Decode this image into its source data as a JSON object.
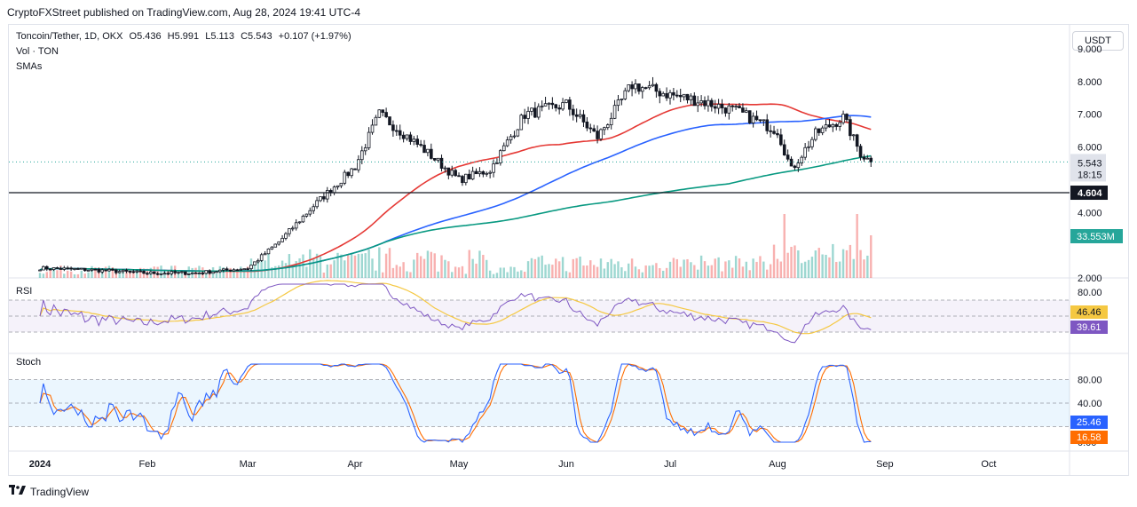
{
  "header": {
    "published": "CryptoFXStreet published on TradingView.com, Aug 28, 2024 19:41 UTC-4"
  },
  "legend": {
    "symbol": "Toncoin/Tether, 1D, OKX",
    "open": "O5.436",
    "high": "H5.991",
    "low": "L5.113",
    "close": "C5.543",
    "change": "+0.107 (+1.97%)",
    "volume_label": "Vol · TON",
    "sma_label": "SMAs"
  },
  "currency_button": "USDT",
  "panes": {
    "rsi_label": "RSI",
    "stoch_label": "Stoch"
  },
  "price_axis": {
    "ticks": [
      "9.000",
      "8.000",
      "7.000",
      "6.000",
      "4.000",
      "2.000"
    ],
    "last_price": "5.543",
    "countdown": "18:15",
    "hline_price": "4.604",
    "volume_badge": "33.553M"
  },
  "rsi_axis": {
    "ticks": [
      "80.00"
    ],
    "rsi_ma_value": "46.46",
    "rsi_value": "39.61"
  },
  "stoch_axis": {
    "ticks": [
      "80.00",
      "40.00",
      "0.00"
    ],
    "k_value": "25.46",
    "d_value": "16.58"
  },
  "time_axis": {
    "labels": [
      "2024",
      "Feb",
      "Mar",
      "Apr",
      "May",
      "Jun",
      "Jul",
      "Aug",
      "Sep",
      "Oct"
    ]
  },
  "brand": "TradingView",
  "colors": {
    "sma_fast": "#e53935",
    "sma_mid": "#2962ff",
    "sma_slow": "#089981",
    "rsi": "#7e57c2",
    "rsi_ma": "#f5c842",
    "stoch_k": "#2962ff",
    "stoch_d": "#ff6d00",
    "up": "#26a69a",
    "down": "#ef5350"
  },
  "chart_data": {
    "type": "line",
    "title": "Toncoin/Tether, 1D, OKX",
    "x": [
      "2024-01-01",
      "2024-01-15",
      "2024-02-01",
      "2024-02-15",
      "2024-03-01",
      "2024-03-10",
      "2024-03-20",
      "2024-04-01",
      "2024-04-08",
      "2024-04-20",
      "2024-05-01",
      "2024-05-10",
      "2024-05-20",
      "2024-06-01",
      "2024-06-10",
      "2024-06-20",
      "2024-07-01",
      "2024-07-10",
      "2024-07-20",
      "2024-08-01",
      "2024-08-05",
      "2024-08-12",
      "2024-08-20",
      "2024-08-25",
      "2024-08-28"
    ],
    "series": [
      {
        "name": "Close",
        "values": [
          2.3,
          2.25,
          2.15,
          2.15,
          2.3,
          3.1,
          4.2,
          5.4,
          7.0,
          6.0,
          5.0,
          5.3,
          7.0,
          7.3,
          6.3,
          7.9,
          7.6,
          7.4,
          7.1,
          6.5,
          5.3,
          6.4,
          6.9,
          5.8,
          5.543
        ]
      }
    ],
    "hline": 4.604,
    "ylim": [
      2.0,
      9.0
    ]
  }
}
